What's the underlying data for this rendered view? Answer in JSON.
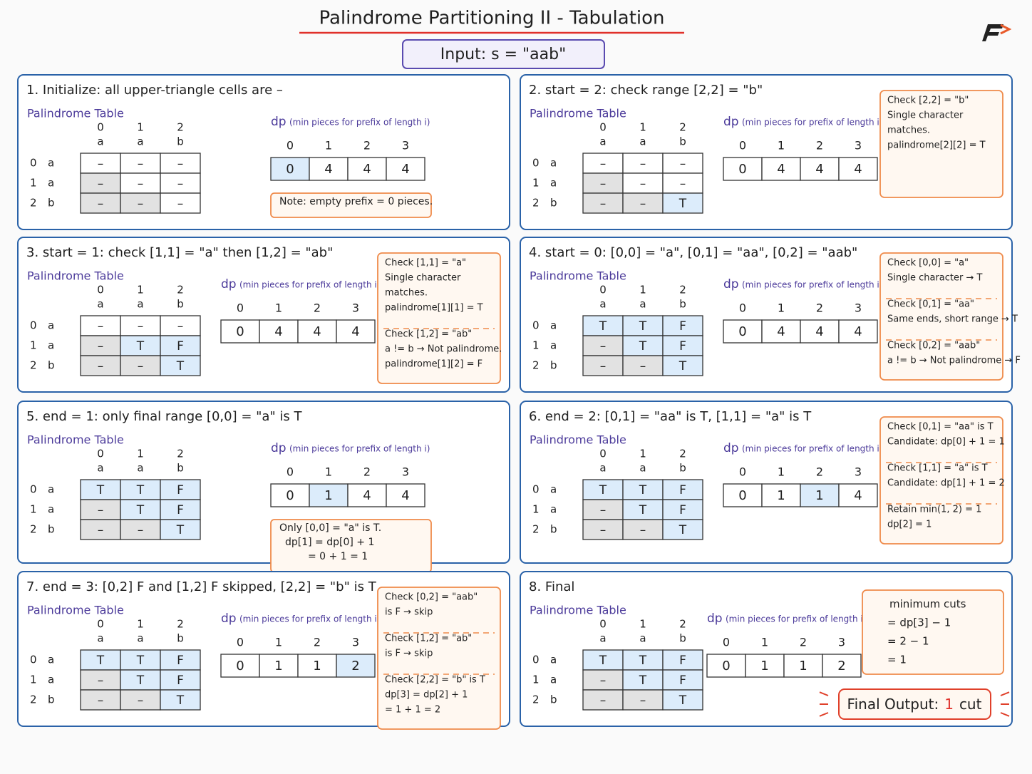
{
  "title": "Palindrome Partitioning II - Tabulation",
  "input": "Input:  s  =  \"aab\"",
  "labels": {
    "table": "Palindrome Table",
    "dp": "dp",
    "dp_hint": "(min pieces for prefix of length i)"
  },
  "indices": [
    "0",
    "1",
    "2"
  ],
  "chars": [
    "a",
    "a",
    "b"
  ],
  "dp_indices": [
    "0",
    "1",
    "2",
    "3"
  ],
  "panels": [
    {
      "title": "1.  Initialize: all upper-triangle cells are –",
      "table": [
        [
          "–",
          "–",
          "–"
        ],
        [
          "–",
          "–",
          "–"
        ],
        [
          "–",
          "–",
          "–"
        ]
      ],
      "dp": [
        "0",
        "4",
        "4",
        "4"
      ],
      "dp_highlight": 0,
      "note": [
        "Note:  empty prefix  =  0  pieces."
      ]
    },
    {
      "title": "2.  start  =  2:  check range [2,2]  =  \"b\"",
      "table": [
        [
          "–",
          "–",
          "–"
        ],
        [
          "–",
          "–",
          "–"
        ],
        [
          "–",
          "–",
          "T"
        ]
      ],
      "dp": [
        "0",
        "4",
        "4",
        "4"
      ],
      "checks": [
        [
          "Check [2,2] = \"b\"",
          "Single character",
          "matches.",
          "palindrome[2][2] = T"
        ]
      ]
    },
    {
      "title": "3.  start  =  1:  check [1,1] = \"a\" then [1,2] = \"ab\"",
      "table": [
        [
          "–",
          "–",
          "–"
        ],
        [
          "–",
          "T",
          "F"
        ],
        [
          "–",
          "–",
          "T"
        ]
      ],
      "dp": [
        "0",
        "4",
        "4",
        "4"
      ],
      "checks": [
        [
          "Check [1,1] = \"a\"",
          "Single character",
          "matches.",
          "palindrome[1][1] = T"
        ],
        [
          "Check [1,2] = \"ab\"",
          "a != b → Not palindrome.",
          "palindrome[1][2] = F"
        ]
      ]
    },
    {
      "title": "4.  start  =  0:  [0,0] = \"a\",  [0,1] = \"aa\",  [0,2] = \"aab\"",
      "table": [
        [
          "T",
          "T",
          "F"
        ],
        [
          "–",
          "T",
          "F"
        ],
        [
          "–",
          "–",
          "T"
        ]
      ],
      "dp": [
        "0",
        "4",
        "4",
        "4"
      ],
      "checks": [
        [
          "Check [0,0] = \"a\"",
          "Single character → T"
        ],
        [
          "Check [0,1] = \"aa\"",
          "Same ends, short range → T"
        ],
        [
          "Check [0,2] = \"aab\"",
          "a != b → Not palindrome → F"
        ]
      ]
    },
    {
      "title": "5.  end  =  1:  only final range [0,0] = \"a\" is T",
      "table": [
        [
          "T",
          "T",
          "F"
        ],
        [
          "–",
          "T",
          "F"
        ],
        [
          "–",
          "–",
          "T"
        ]
      ],
      "dp": [
        "0",
        "1",
        "4",
        "4"
      ],
      "dp_highlight": 1,
      "note": [
        "Only [0,0] = \"a\" is T.",
        "dp[1] = dp[0] + 1",
        "= 0 + 1 = 1"
      ]
    },
    {
      "title": "6.  end  =  2:  [0,1] = \"aa\" is T,  [1,1] = \"a\" is T",
      "table": [
        [
          "T",
          "T",
          "F"
        ],
        [
          "–",
          "T",
          "F"
        ],
        [
          "–",
          "–",
          "T"
        ]
      ],
      "dp": [
        "0",
        "1",
        "1",
        "4"
      ],
      "dp_highlight": 2,
      "checks": [
        [
          "Check [0,1] = \"aa\" is T",
          "Candidate: dp[0] + 1 = 1"
        ],
        [
          "Check [1,1] = \"a\" is T",
          "Candidate: dp[1] + 1 = 2"
        ],
        [
          "Retain min(1, 2) = 1",
          "dp[2] = 1"
        ]
      ]
    },
    {
      "title": "7.  end  =  3:  [0,2] F and [1,2] F skipped,  [2,2] = \"b\" is T",
      "table": [
        [
          "T",
          "T",
          "F"
        ],
        [
          "–",
          "T",
          "F"
        ],
        [
          "–",
          "–",
          "T"
        ]
      ],
      "dp": [
        "0",
        "1",
        "1",
        "2"
      ],
      "dp_highlight": 3,
      "checks": [
        [
          "Check [0,2] = \"aab\"",
          "is F → skip"
        ],
        [
          "Check [1,2] = \"ab\"",
          "is F → skip"
        ],
        [
          "Check [2,2] = \"b\" is T",
          "dp[3] = dp[2] + 1",
          "= 1 + 1 = 2"
        ]
      ]
    },
    {
      "title": "8.  Final",
      "table": [
        [
          "T",
          "T",
          "F"
        ],
        [
          "–",
          "T",
          "F"
        ],
        [
          "–",
          "–",
          "T"
        ]
      ],
      "dp": [
        "0",
        "1",
        "1",
        "2"
      ],
      "summary": [
        "minimum cuts",
        "=  dp[3]  −  1",
        "=  2  −  1",
        "=  1"
      ],
      "final_output": {
        "label": "Final Output:",
        "value": "1",
        "unit": "cut"
      }
    }
  ]
}
